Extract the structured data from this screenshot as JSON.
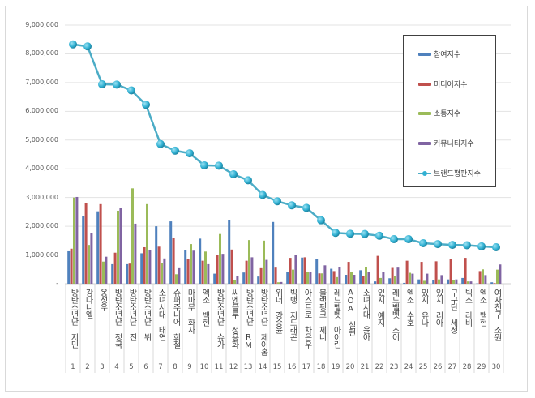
{
  "chart_data": {
    "type": "bar+line",
    "title": "",
    "xlabel": "",
    "ylabel": "",
    "ylim": [
      0,
      9000000
    ],
    "yticks": [
      "-",
      "1,000,000",
      "2,000,000",
      "3,000,000",
      "4,000,000",
      "5,000,000",
      "6,000,000",
      "7,000,000",
      "8,000,000",
      "9,000,000"
    ],
    "grid": true,
    "legend_position": "top-right",
    "categories": [
      "방탄소년단 지민",
      "강다니엘",
      "옹성우",
      "방탄소년단 정국",
      "방탄소년단 진",
      "방탄소년단 뷔",
      "소녀시대 태연",
      "슈퍼주니어 희철",
      "마마무 화사",
      "엑소 백현",
      "방탄소년단 슈가",
      "씨엔블루 정용화",
      "방탄소년단 RM",
      "방탄소년단 제이홉",
      "위너 강승윤",
      "빅뱅 지드래곤",
      "아스트로 차은우",
      "블랙핑크 제니",
      "레드벨벳 아이린",
      "AOA 설현",
      "소녀시대 윤아",
      "있지 예지",
      "레드벨벳 조이",
      "엑소 수호",
      "있지 유나",
      "있지 리아",
      "구구단 세정",
      "빅스 라비",
      "엑소 백현",
      "여자친구 소원"
    ],
    "ranks": [
      "1",
      "2",
      "3",
      "4",
      "5",
      "6",
      "7",
      "8",
      "9",
      "10",
      "11",
      "12",
      "13",
      "14",
      "15",
      "16",
      "17",
      "18",
      "19",
      "20",
      "21",
      "22",
      "23",
      "24",
      "25",
      "26",
      "27",
      "28",
      "29",
      "30"
    ],
    "series": [
      {
        "name": "참여지수",
        "type": "bar",
        "color": "#4f81bd",
        "values": [
          1130000,
          2370000,
          2520000,
          680000,
          680000,
          1060000,
          2000000,
          2170000,
          1180000,
          1570000,
          350000,
          2210000,
          390000,
          250000,
          2150000,
          400000,
          910000,
          870000,
          520000,
          310000,
          470000,
          80000,
          190000,
          30000,
          150000,
          120000,
          150000,
          200000,
          10000,
          50000
        ]
      },
      {
        "name": "미디어지수",
        "type": "bar",
        "color": "#c0504d",
        "values": [
          1220000,
          2800000,
          2770000,
          1080000,
          700000,
          1270000,
          1290000,
          1600000,
          850000,
          800000,
          1010000,
          1190000,
          800000,
          540000,
          560000,
          900000,
          920000,
          360000,
          440000,
          760000,
          280000,
          970000,
          550000,
          800000,
          760000,
          780000,
          870000,
          900000,
          440000,
          20000
        ]
      },
      {
        "name": "소통지수",
        "type": "bar",
        "color": "#9bbb59",
        "values": [
          3000000,
          1350000,
          770000,
          2540000,
          3320000,
          2770000,
          730000,
          330000,
          1380000,
          1120000,
          1730000,
          140000,
          1520000,
          1500000,
          50000,
          490000,
          420000,
          360000,
          230000,
          400000,
          580000,
          200000,
          260000,
          380000,
          100000,
          150000,
          130000,
          80000,
          500000,
          490000
        ]
      },
      {
        "name": "커뮤니티지수",
        "type": "bar",
        "color": "#8064a2",
        "values": [
          3020000,
          1770000,
          940000,
          2650000,
          2090000,
          1180000,
          880000,
          540000,
          1150000,
          680000,
          1040000,
          280000,
          920000,
          830000,
          60000,
          990000,
          420000,
          640000,
          580000,
          310000,
          400000,
          410000,
          560000,
          350000,
          350000,
          300000,
          150000,
          80000,
          300000,
          670000
        ]
      },
      {
        "name": "브랜드평판지수",
        "type": "line",
        "color": "#4bacc6",
        "values": [
          8330000,
          8260000,
          6940000,
          6930000,
          6730000,
          6230000,
          4860000,
          4630000,
          4540000,
          4120000,
          4110000,
          3810000,
          3600000,
          3090000,
          2870000,
          2730000,
          2640000,
          2210000,
          1770000,
          1740000,
          1730000,
          1670000,
          1550000,
          1550000,
          1410000,
          1380000,
          1350000,
          1340000,
          1300000,
          1270000
        ]
      }
    ]
  }
}
